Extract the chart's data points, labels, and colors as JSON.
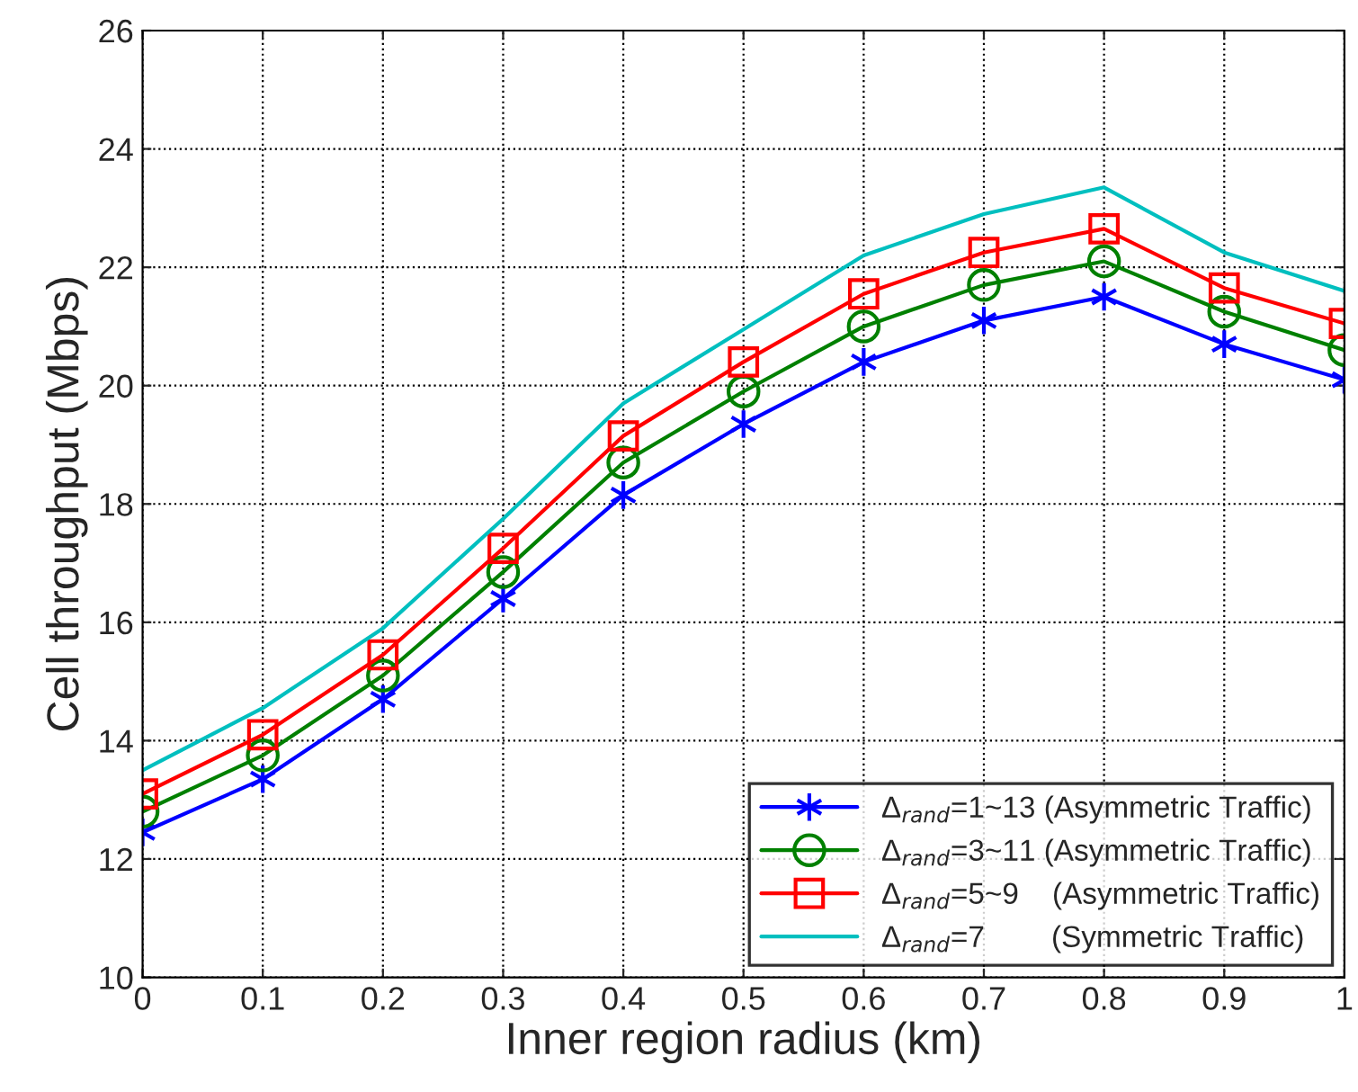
{
  "chart_data": {
    "type": "line",
    "xlabel": "Inner region radius (km)",
    "ylabel": "Cell throughput (Mbps)",
    "x": [
      0,
      0.1,
      0.2,
      0.3,
      0.4,
      0.5,
      0.6,
      0.7,
      0.8,
      0.9,
      1
    ],
    "series": [
      {
        "name": "Δ$_{rand}$=1~13 (Asymmetric Traffic)",
        "color": "#0000ff",
        "marker": "cross",
        "values": [
          12.45,
          13.35,
          14.7,
          16.4,
          18.15,
          19.35,
          20.4,
          21.1,
          21.5,
          20.7,
          20.1
        ]
      },
      {
        "name": "Δ$_{rand}$=3~11 (Asymmetric Traffic)",
        "color": "#008000",
        "marker": "circle",
        "values": [
          12.8,
          13.75,
          15.1,
          16.85,
          18.7,
          19.9,
          21.0,
          21.7,
          22.1,
          21.25,
          20.6
        ]
      },
      {
        "name": "Δ$_{rand}$=5~9    (Asymmetric Traffic)",
        "color": "#ff0000",
        "marker": "square",
        "values": [
          13.1,
          14.1,
          15.45,
          17.25,
          19.15,
          20.4,
          21.55,
          22.25,
          22.65,
          21.65,
          21.05
        ]
      },
      {
        "name": "Δ$_{rand}$=7        (Symmetric Traffic)",
        "color": "#00bfbf",
        "marker": "none",
        "values": [
          13.5,
          14.55,
          15.9,
          17.75,
          19.7,
          20.95,
          22.2,
          22.9,
          23.35,
          22.25,
          21.6
        ]
      }
    ],
    "xlim": [
      0,
      1
    ],
    "xticks": [
      0,
      0.1,
      0.2,
      0.3,
      0.4,
      0.5,
      0.6,
      0.7,
      0.8,
      0.9,
      1
    ],
    "ylim": [
      10,
      26
    ],
    "yticks": [
      10,
      12,
      14,
      16,
      18,
      20,
      22,
      24,
      26
    ],
    "grid": true,
    "legend": "bottom right",
    "line_style": "solid"
  }
}
